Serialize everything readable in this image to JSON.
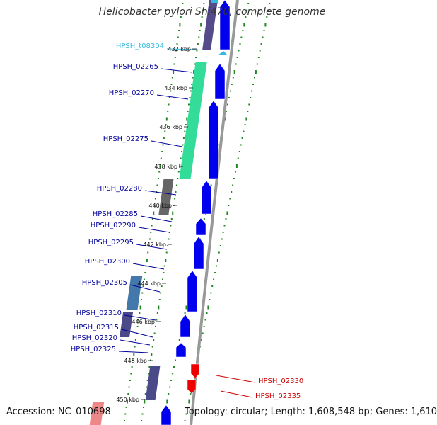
{
  "title": "Helicobacter pylori Shi470, complete genome",
  "accession": "Accession: NC_010698",
  "topology": "Topology: circular; Length: 1,608,548 bp; Genes: 1,610",
  "colors": {
    "forward_cds": "#0000ee",
    "reverse_cds": "#ee0000",
    "rna": "#33bbdd",
    "backbone": "#999999",
    "gc_dots": "#228822",
    "label_forward": "#000099",
    "label_reverse": "#cc0000",
    "label_rna": "#33bbdd"
  },
  "ticks": [
    "432 kbp",
    "434 kbp",
    "436 kbp",
    "438 kbp",
    "440 kbp",
    "442 kbp",
    "444 kbp",
    "446 kbp",
    "448 kbp",
    "450 kbp"
  ],
  "genes": [
    {
      "label": "HPSH_t08304",
      "type": "rna"
    },
    {
      "label": "HPSH_02265",
      "type": "forward"
    },
    {
      "label": "HPSH_02270",
      "type": "forward"
    },
    {
      "label": "HPSH_02275",
      "type": "forward"
    },
    {
      "label": "HPSH_02280",
      "type": "forward"
    },
    {
      "label": "HPSH_02285",
      "type": "forward"
    },
    {
      "label": "HPSH_02290",
      "type": "forward"
    },
    {
      "label": "HPSH_02295",
      "type": "forward"
    },
    {
      "label": "HPSH_02300",
      "type": "forward"
    },
    {
      "label": "HPSH_02305",
      "type": "forward"
    },
    {
      "label": "HPSH_02310",
      "type": "forward"
    },
    {
      "label": "HPSH_02315",
      "type": "forward"
    },
    {
      "label": "HPSH_02320",
      "type": "forward"
    },
    {
      "label": "HPSH_02325",
      "type": "forward"
    },
    {
      "label": "HPSH_02330",
      "type": "reverse"
    },
    {
      "label": "HPSH_02335",
      "type": "reverse"
    }
  ]
}
